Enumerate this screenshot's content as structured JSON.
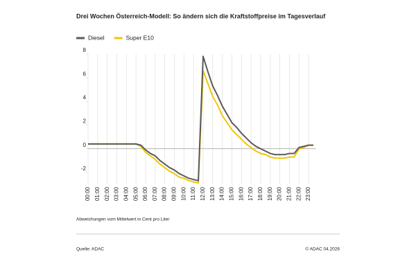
{
  "chart_data": {
    "type": "line",
    "title": "Drei Wochen Österreich-Modell: So ändern sich die Kraftstoffpreise im Tagesverlauf",
    "categories": [
      "00:00",
      null,
      "01:00",
      null,
      "02:00",
      null,
      "03:00",
      null,
      "04:00",
      null,
      "05:00",
      null,
      "06:00",
      null,
      "07:00",
      null,
      "08:00",
      null,
      "09:00",
      null,
      "10:00",
      null,
      "11:00",
      null,
      "12:00",
      null,
      "13:00",
      null,
      "14:00",
      null,
      "15:00",
      null,
      "16:00",
      null,
      "17:00",
      null,
      "18:00",
      null,
      "19:00",
      null,
      "20:00",
      null,
      "21:00",
      null,
      "22:00",
      null,
      "23:00",
      null
    ],
    "series": [
      {
        "name": "Diesel",
        "color": "#5a5a5a",
        "values": [
          0.4,
          0.4,
          0.4,
          0.4,
          0.4,
          0.4,
          0.4,
          0.4,
          0.4,
          0.4,
          0.4,
          0.3,
          -0.1,
          -0.4,
          -0.6,
          -1.0,
          -1.3,
          -1.6,
          -1.8,
          -2.1,
          -2.3,
          -2.5,
          -2.6,
          -2.7,
          7.8,
          6.5,
          5.3,
          4.5,
          3.6,
          2.9,
          2.2,
          1.8,
          1.3,
          0.9,
          0.5,
          0.2,
          0.0,
          -0.2,
          -0.4,
          -0.5,
          -0.5,
          -0.5,
          -0.4,
          -0.4,
          0.1,
          0.2,
          0.3,
          0.3
        ]
      },
      {
        "name": "Super E10",
        "color": "#f2c500",
        "values": [
          0.4,
          0.4,
          0.4,
          0.4,
          0.4,
          0.4,
          0.4,
          0.4,
          0.4,
          0.4,
          0.4,
          0.2,
          -0.3,
          -0.6,
          -0.9,
          -1.3,
          -1.6,
          -1.9,
          -2.1,
          -2.4,
          -2.5,
          -2.7,
          -2.8,
          -2.9,
          6.6,
          5.5,
          4.4,
          3.7,
          2.8,
          2.2,
          1.6,
          1.2,
          0.8,
          0.4,
          0.1,
          -0.2,
          -0.4,
          -0.5,
          -0.7,
          -0.8,
          -0.8,
          -0.8,
          -0.7,
          -0.7,
          0.0,
          0.1,
          0.3,
          0.3
        ]
      }
    ],
    "ylim": [
      -3,
      8
    ],
    "yticks": [
      -2,
      0,
      2,
      4,
      6,
      8
    ],
    "note": "Abweichungen vom Mittelwert in Cent pro Liter",
    "source": "Quelle: ADAC",
    "copyright": "© ADAC 04.2026"
  }
}
